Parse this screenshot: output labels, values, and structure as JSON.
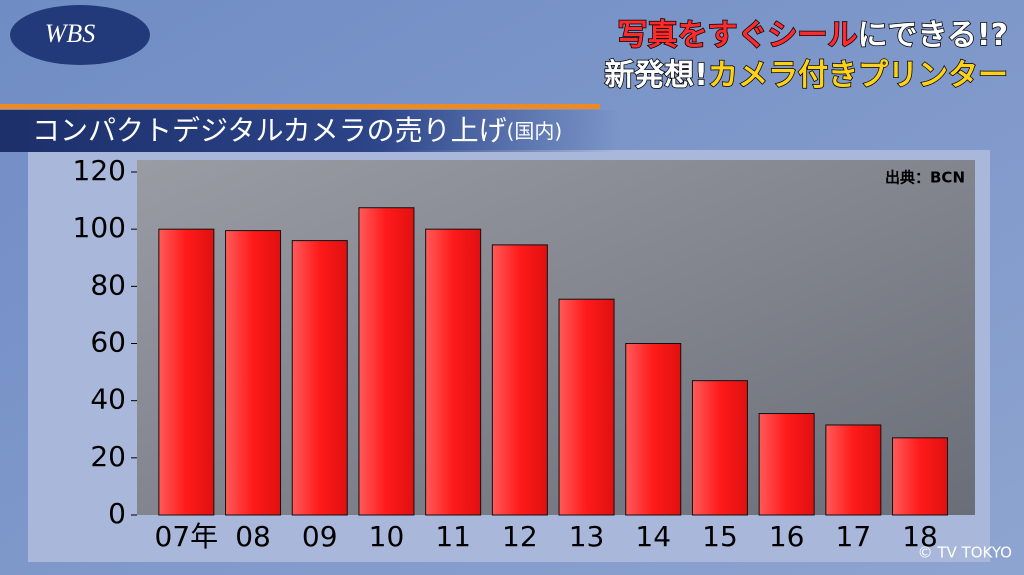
{
  "overlay": {
    "logo": "WBS",
    "headline": [
      [
        {
          "text": "写真をすぐシール",
          "color": "#ff2a2a"
        },
        {
          "text": "にできる!?",
          "color": "#ffffff"
        }
      ],
      [
        {
          "text": "新発想!",
          "color": "#ffffff"
        },
        {
          "text": "カメラ付きプリンター",
          "color": "#ffd21a"
        }
      ]
    ],
    "copyright": "© TV TOKYO"
  },
  "chart_data": {
    "type": "bar",
    "title": "コンパクトデジタルカメラの売り上げ",
    "subtitle": "(国内)",
    "source": "出典：BCN",
    "categories": [
      "07年",
      "08",
      "09",
      "10",
      "11",
      "12",
      "13",
      "14",
      "15",
      "16",
      "17",
      "18"
    ],
    "values": [
      100,
      99.5,
      96,
      107.5,
      100,
      94.5,
      75.5,
      60,
      47,
      35.5,
      31.5,
      27
    ],
    "color": "#ff2020",
    "ylim": [
      0,
      120
    ],
    "yticks": [
      0,
      20,
      40,
      60,
      80,
      100,
      120
    ],
    "grid": false
  }
}
